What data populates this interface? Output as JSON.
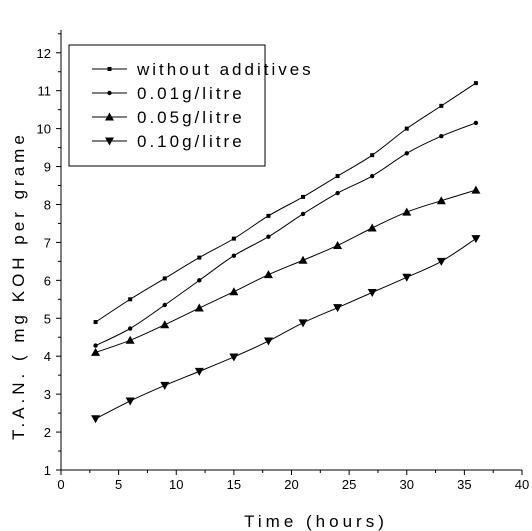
{
  "chart_data": {
    "type": "line",
    "title": "",
    "xlabel": "Time (hours)",
    "ylabel": "T.A.N. ( mg KOH per grame",
    "xlim": [
      0,
      40
    ],
    "ylim": [
      1,
      12.6
    ],
    "xticks": [
      0,
      5,
      10,
      15,
      20,
      25,
      30,
      35,
      40
    ],
    "yticks": [
      1,
      2,
      3,
      4,
      5,
      6,
      7,
      8,
      9,
      10,
      11,
      12
    ],
    "grid": false,
    "legend_position": "top-left",
    "x": [
      3,
      6,
      9,
      12,
      15,
      18,
      21,
      24,
      27,
      30,
      33,
      36
    ],
    "series": [
      {
        "name": "without additives",
        "marker": "square",
        "values": [
          4.9,
          5.5,
          6.05,
          6.6,
          7.1,
          7.7,
          8.2,
          8.75,
          9.3,
          10.0,
          10.6,
          11.2
        ]
      },
      {
        "name": "0.01g/litre",
        "marker": "circle",
        "values": [
          4.28,
          4.73,
          5.35,
          6.0,
          6.65,
          7.15,
          7.75,
          8.3,
          8.75,
          9.35,
          9.8,
          10.15
        ]
      },
      {
        "name": "0.05g/litre",
        "marker": "triangle-up",
        "values": [
          4.1,
          4.42,
          4.83,
          5.27,
          5.7,
          6.15,
          6.53,
          6.92,
          7.38,
          7.8,
          8.1,
          8.38
        ]
      },
      {
        "name": "0.10g/litre",
        "marker": "triangle-down",
        "values": [
          2.35,
          2.82,
          3.23,
          3.6,
          3.98,
          4.4,
          4.88,
          5.28,
          5.68,
          6.08,
          6.5,
          7.1
        ]
      }
    ]
  }
}
